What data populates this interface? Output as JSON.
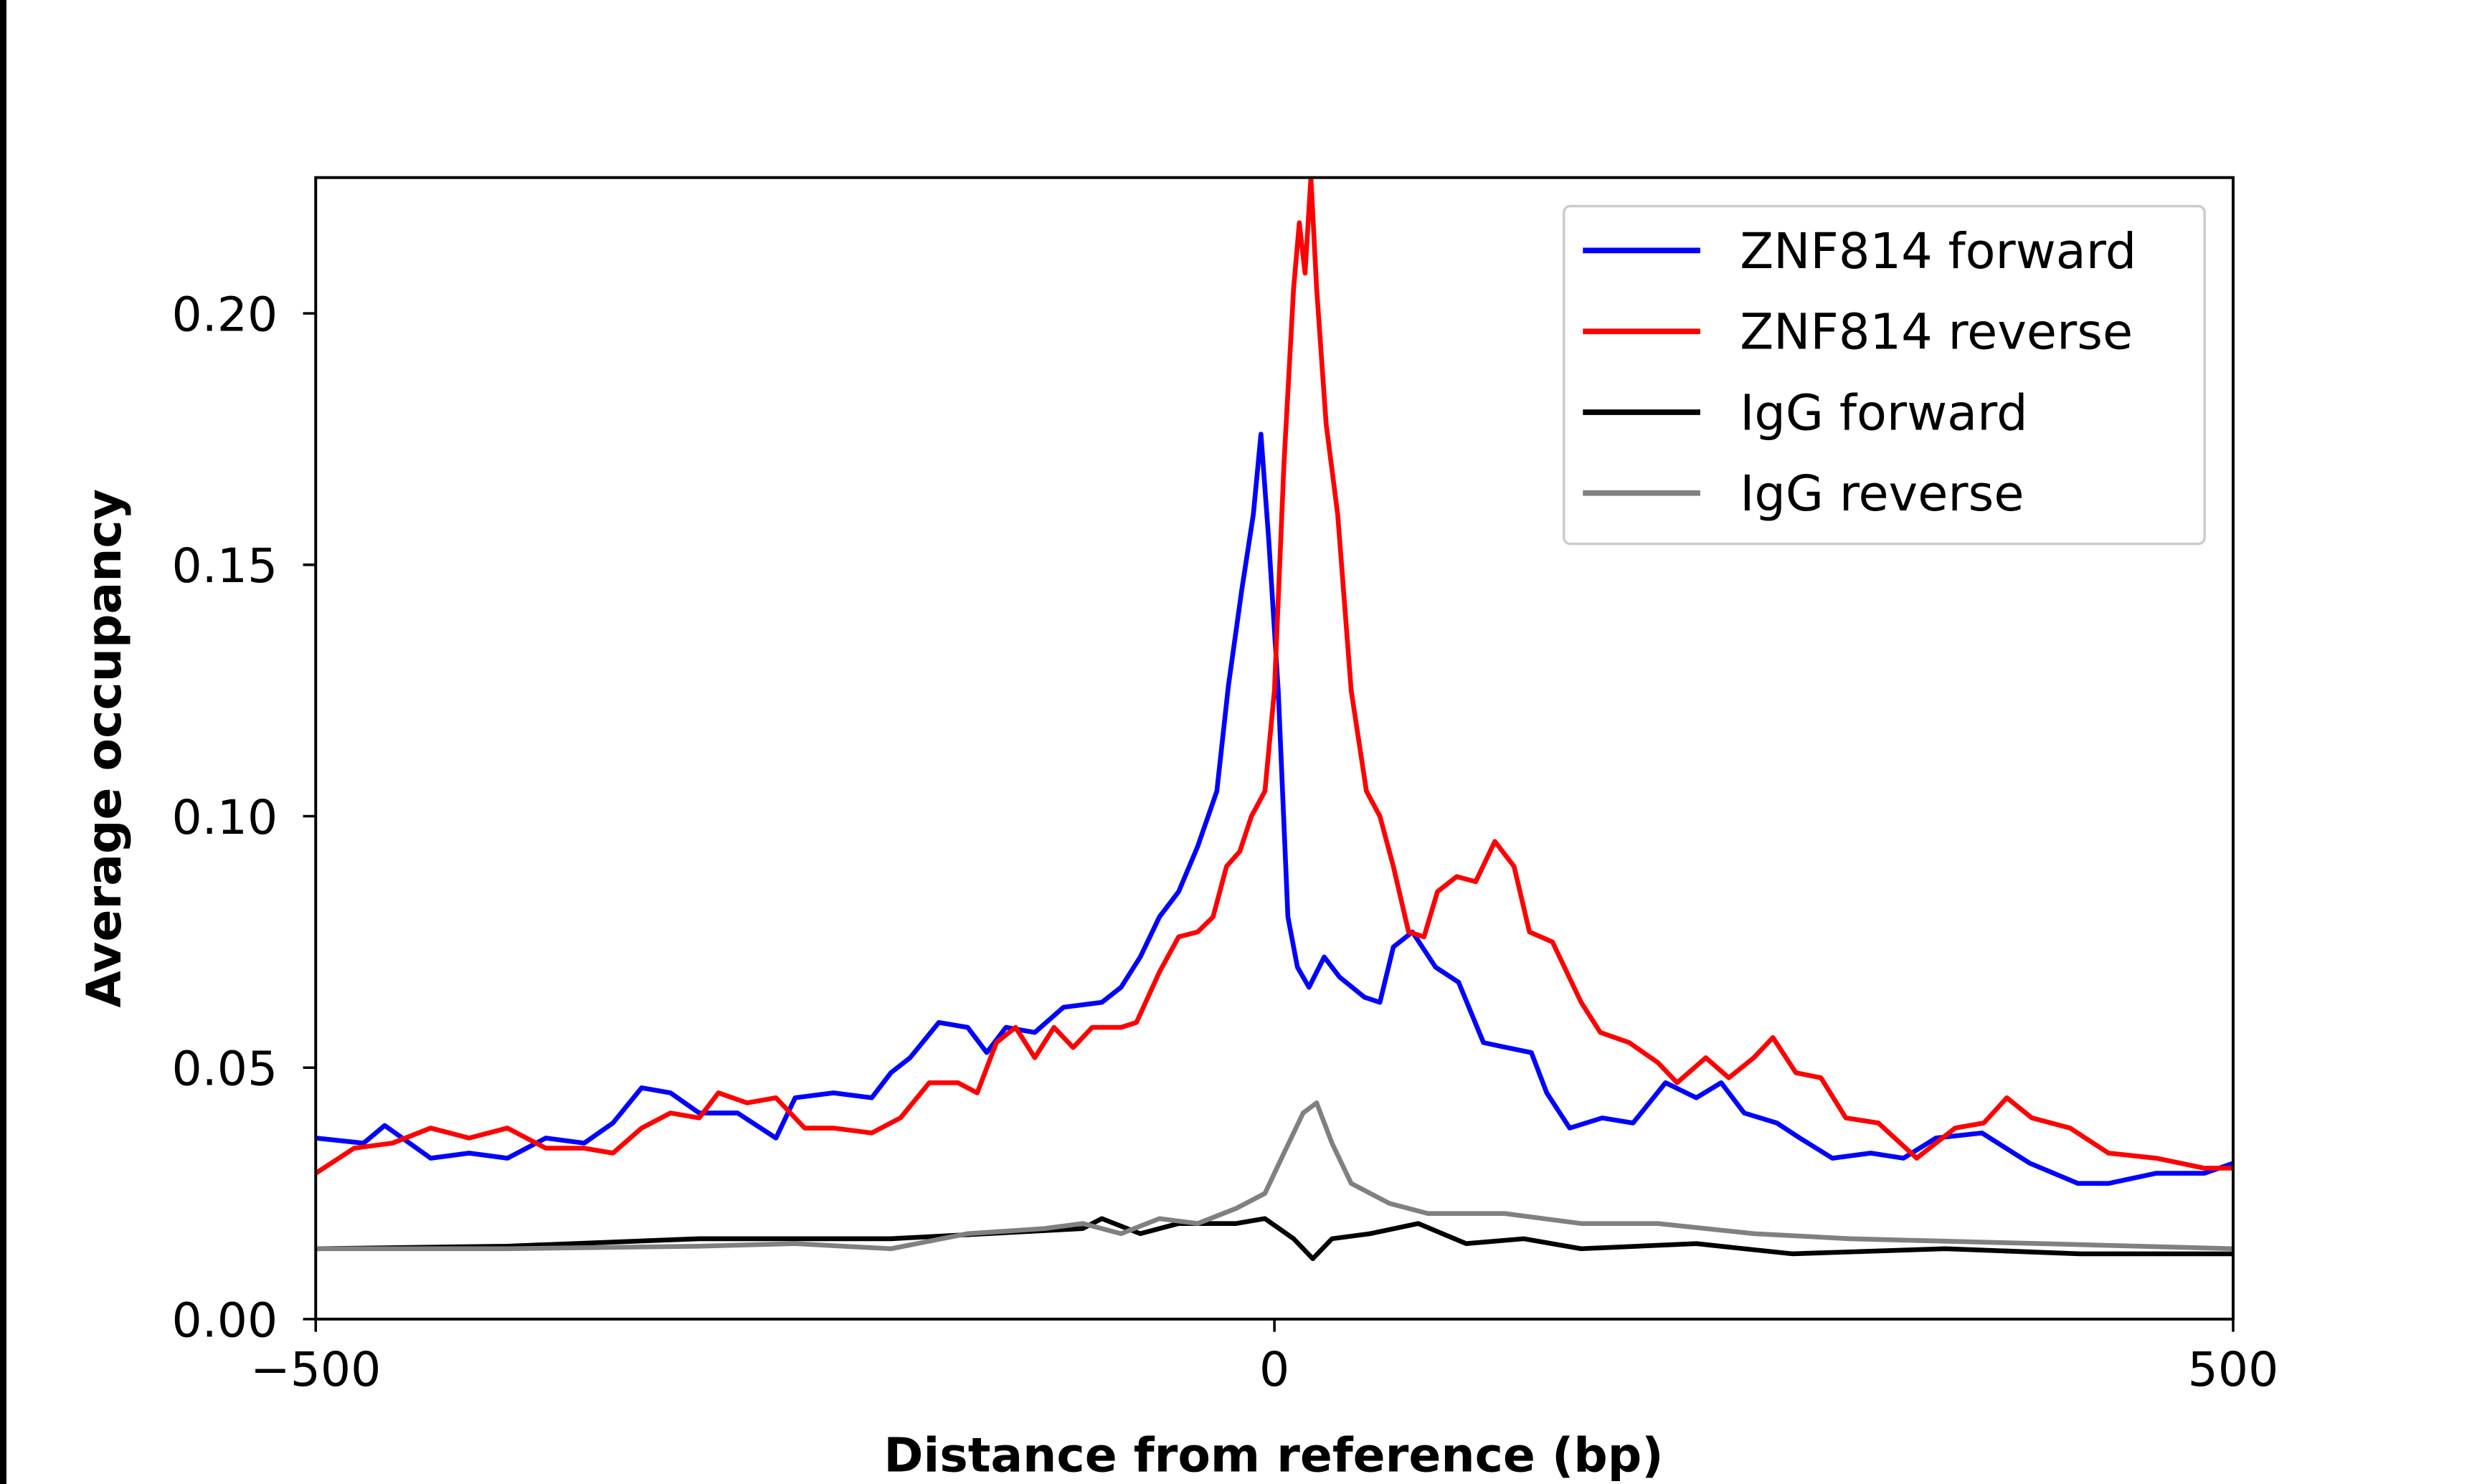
{
  "chart_data": {
    "type": "line",
    "title": "",
    "xlabel": "Distance from reference (bp)",
    "ylabel": "Average occupancy",
    "xlim": [
      -500,
      500
    ],
    "ylim": [
      0,
      0.227
    ],
    "xticks": [
      -500,
      0,
      500
    ],
    "xtick_labels": [
      "−500",
      "0",
      "500"
    ],
    "yticks": [
      0.0,
      0.05,
      0.1,
      0.15,
      0.2
    ],
    "ytick_labels": [
      "0.00",
      "0.05",
      "0.10",
      "0.15",
      "0.20"
    ],
    "grid": false,
    "legend_position": "top-right",
    "series": [
      {
        "name": "ZNF814 forward",
        "color": "#0000ff",
        "x": [
          -500,
          -475,
          -464,
          -440,
          -420,
          -400,
          -380,
          -360,
          -345,
          -330,
          -315,
          -300,
          -280,
          -260,
          -250,
          -230,
          -210,
          -200,
          -190,
          -175,
          -160,
          -150,
          -140,
          -125,
          -110,
          -90,
          -80,
          -70,
          -60,
          -50,
          -40,
          -30,
          -24,
          -17,
          -11,
          -7,
          -3,
          2,
          7,
          12,
          18,
          26,
          34,
          47,
          55,
          62,
          72,
          84,
          96,
          109,
          121,
          134,
          142,
          154,
          171,
          187,
          204,
          220,
          233,
          245,
          262,
          274,
          291,
          311,
          328,
          345,
          369,
          394,
          419,
          435,
          460,
          485,
          500
        ],
        "y": [
          0.036,
          0.035,
          0.0385,
          0.032,
          0.033,
          0.032,
          0.036,
          0.035,
          0.039,
          0.046,
          0.045,
          0.041,
          0.041,
          0.036,
          0.044,
          0.045,
          0.044,
          0.049,
          0.052,
          0.059,
          0.058,
          0.053,
          0.058,
          0.057,
          0.062,
          0.063,
          0.066,
          0.072,
          0.08,
          0.085,
          0.094,
          0.105,
          0.126,
          0.145,
          0.16,
          0.176,
          0.155,
          0.125,
          0.08,
          0.07,
          0.066,
          0.072,
          0.068,
          0.064,
          0.063,
          0.074,
          0.077,
          0.07,
          0.067,
          0.055,
          0.054,
          0.053,
          0.045,
          0.038,
          0.04,
          0.039,
          0.047,
          0.044,
          0.047,
          0.041,
          0.039,
          0.036,
          0.032,
          0.033,
          0.032,
          0.036,
          0.037,
          0.031,
          0.027,
          0.027,
          0.029,
          0.029,
          0.031
        ]
      },
      {
        "name": "ZNF814 reverse",
        "color": "#ff0000",
        "x": [
          -500,
          -480,
          -460,
          -440,
          -420,
          -400,
          -380,
          -360,
          -345,
          -330,
          -315,
          -300,
          -290,
          -275,
          -260,
          -245,
          -230,
          -210,
          -195,
          -180,
          -165,
          -155,
          -145,
          -135,
          -125,
          -115,
          -105,
          -95,
          -80,
          -72,
          -60,
          -50,
          -40,
          -32,
          -25,
          -18,
          -12,
          -5,
          0,
          5,
          10,
          13,
          16,
          19,
          22,
          27,
          33,
          40,
          48,
          55,
          62,
          70,
          78,
          85,
          95,
          105,
          115,
          125,
          133,
          145,
          160,
          170,
          185,
          200,
          210,
          225,
          237,
          250,
          260,
          272,
          285,
          298,
          315,
          335,
          355,
          370,
          382,
          395,
          415,
          435,
          460,
          485,
          500
        ],
        "y": [
          0.029,
          0.034,
          0.035,
          0.038,
          0.036,
          0.038,
          0.034,
          0.034,
          0.033,
          0.038,
          0.041,
          0.04,
          0.045,
          0.043,
          0.044,
          0.038,
          0.038,
          0.037,
          0.04,
          0.047,
          0.047,
          0.045,
          0.055,
          0.058,
          0.052,
          0.058,
          0.054,
          0.058,
          0.058,
          0.059,
          0.069,
          0.076,
          0.077,
          0.08,
          0.09,
          0.093,
          0.1,
          0.105,
          0.125,
          0.17,
          0.205,
          0.218,
          0.208,
          0.227,
          0.205,
          0.178,
          0.16,
          0.125,
          0.105,
          0.1,
          0.09,
          0.077,
          0.076,
          0.085,
          0.088,
          0.087,
          0.095,
          0.09,
          0.077,
          0.075,
          0.063,
          0.057,
          0.055,
          0.051,
          0.047,
          0.052,
          0.048,
          0.052,
          0.056,
          0.049,
          0.048,
          0.04,
          0.039,
          0.032,
          0.038,
          0.039,
          0.044,
          0.04,
          0.038,
          0.033,
          0.032,
          0.03,
          0.03
        ]
      },
      {
        "name": "IgG forward",
        "color": "#000000",
        "x": [
          -500,
          -400,
          -300,
          -250,
          -200,
          -150,
          -100,
          -90,
          -70,
          -50,
          -20,
          -5,
          10,
          20,
          30,
          50,
          75,
          100,
          130,
          160,
          220,
          270,
          350,
          420,
          500
        ],
        "y": [
          0.014,
          0.0145,
          0.016,
          0.016,
          0.016,
          0.017,
          0.018,
          0.02,
          0.017,
          0.019,
          0.019,
          0.02,
          0.016,
          0.012,
          0.016,
          0.017,
          0.019,
          0.015,
          0.016,
          0.014,
          0.015,
          0.013,
          0.014,
          0.013,
          0.013
        ]
      },
      {
        "name": "IgG reverse",
        "color": "#808080",
        "x": [
          -500,
          -400,
          -300,
          -250,
          -200,
          -160,
          -120,
          -100,
          -80,
          -60,
          -40,
          -20,
          -5,
          5,
          15,
          22,
          30,
          40,
          60,
          80,
          120,
          160,
          200,
          250,
          300,
          400,
          500
        ],
        "y": [
          0.014,
          0.014,
          0.0145,
          0.015,
          0.014,
          0.017,
          0.018,
          0.019,
          0.017,
          0.02,
          0.019,
          0.022,
          0.025,
          0.033,
          0.041,
          0.043,
          0.035,
          0.027,
          0.023,
          0.021,
          0.021,
          0.019,
          0.019,
          0.017,
          0.016,
          0.015,
          0.014
        ]
      }
    ]
  }
}
